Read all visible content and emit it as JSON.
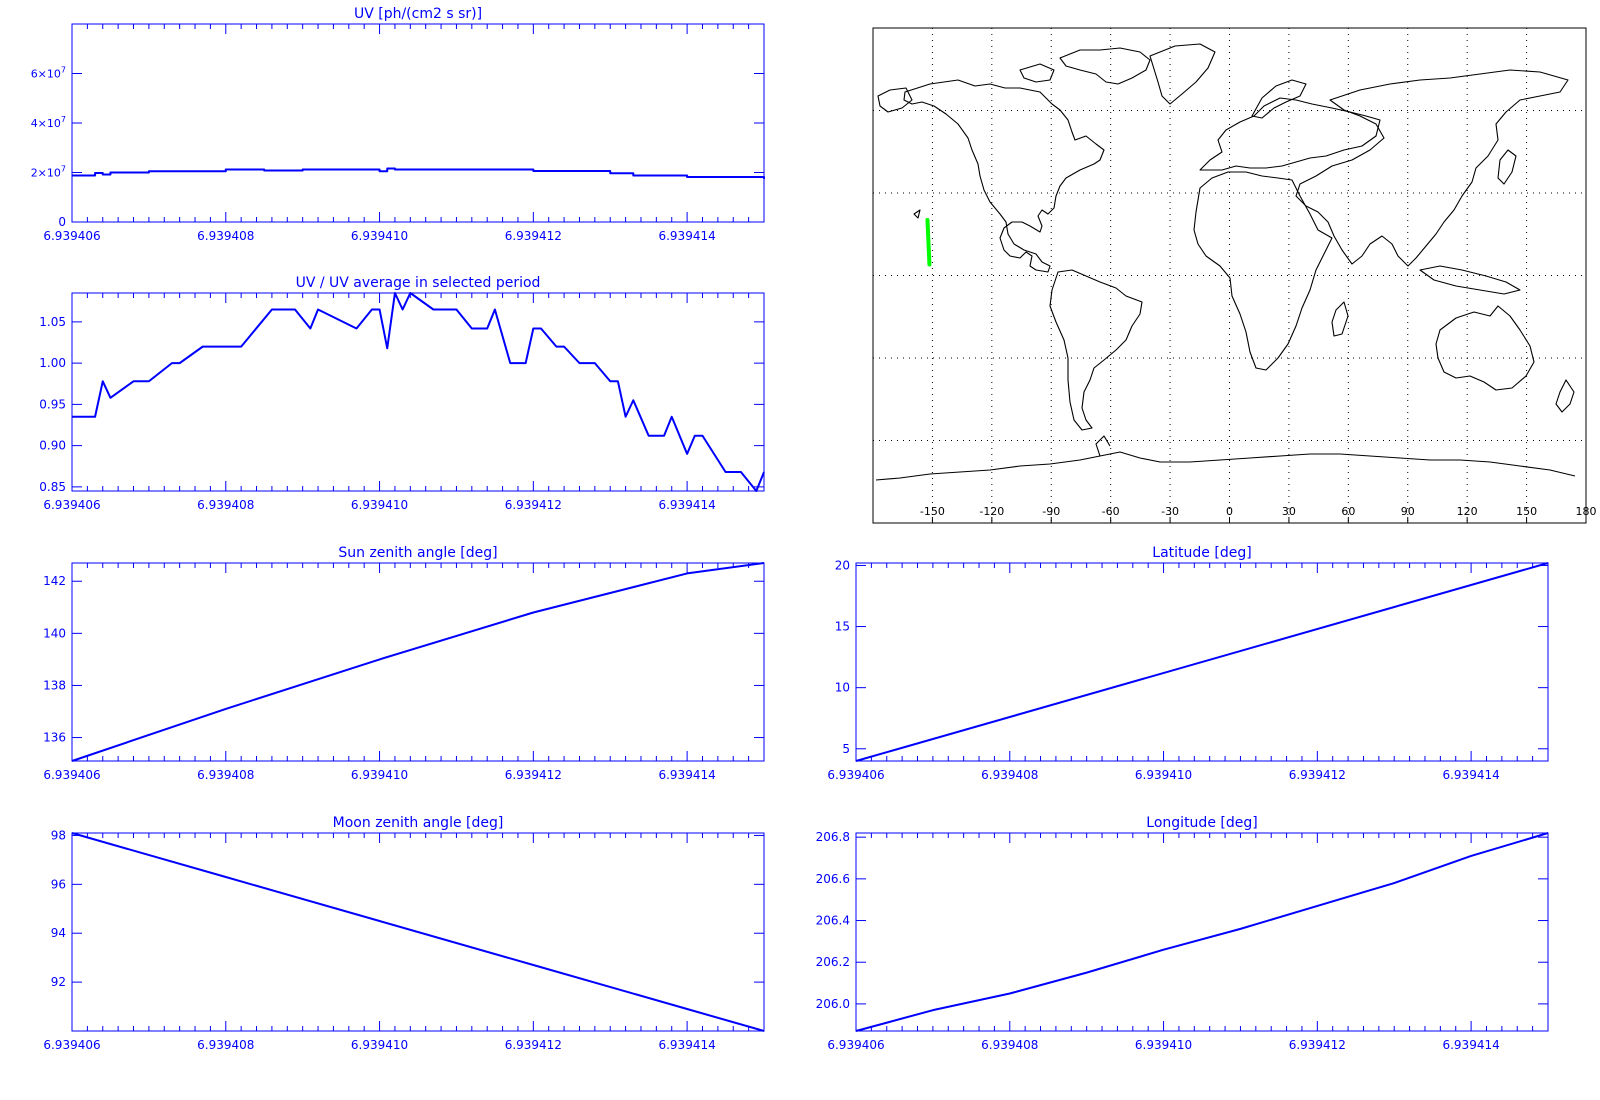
{
  "colors": {
    "axis": "#0000ff",
    "line": "#0000ff",
    "map": "#000000",
    "track": "#00ff00",
    "grid": "#000000"
  },
  "time_ticks": [
    "6.939406",
    "6.939408",
    "6.939410",
    "6.939412",
    "6.939414"
  ],
  "chart_data": [
    {
      "id": "uv",
      "type": "line",
      "title": "UV [ph/(cm2 s sr)]",
      "xlim": [
        6.939406,
        6.939415
      ],
      "ylim": [
        0,
        80000000.0
      ],
      "yticks": [
        {
          "v": 0,
          "label": "0"
        },
        {
          "v": 20000000.0,
          "label": "2x10^7"
        },
        {
          "v": 40000000.0,
          "label": "4x10^7"
        },
        {
          "v": 60000000.0,
          "label": "6x10^7"
        }
      ],
      "step": true,
      "x": [
        6.939406,
        6.9394063,
        6.9394064,
        6.9394065,
        6.939407,
        6.939408,
        6.9394085,
        6.939409,
        6.93941,
        6.9394101,
        6.9394102,
        6.939411,
        6.939412,
        6.939413,
        6.9394133,
        6.939414,
        6.939415
      ],
      "values": [
        18800000.0,
        19800000.0,
        19200000.0,
        20000000.0,
        20500000.0,
        21200000.0,
        20800000.0,
        21200000.0,
        20500000.0,
        21600000.0,
        21200000.0,
        21200000.0,
        20600000.0,
        19700000.0,
        18800000.0,
        18200000.0,
        17400000.0
      ]
    },
    {
      "id": "ratio",
      "type": "line",
      "title": "UV / UV average in selected period",
      "xlim": [
        6.939406,
        6.939415
      ],
      "ylim": [
        0.845,
        1.085
      ],
      "yticks": [
        {
          "v": 0.85,
          "label": "0.85"
        },
        {
          "v": 0.9,
          "label": "0.90"
        },
        {
          "v": 0.95,
          "label": "0.95"
        },
        {
          "v": 1.0,
          "label": "1.00"
        },
        {
          "v": 1.05,
          "label": "1.05"
        }
      ],
      "x": [
        6.939406,
        6.9394063,
        6.9394064,
        6.9394065,
        6.9394068,
        6.939407,
        6.9394073,
        6.9394074,
        6.9394077,
        6.9394078,
        6.9394082,
        6.9394086,
        6.9394088,
        6.9394089,
        6.9394091,
        6.9394092,
        6.9394097,
        6.9394099,
        6.93941,
        6.9394101,
        6.9394102,
        6.9394103,
        6.9394104,
        6.9394107,
        6.939411,
        6.9394112,
        6.9394114,
        6.9394115,
        6.9394117,
        6.9394119,
        6.939412,
        6.9394121,
        6.9394123,
        6.9394124,
        6.9394126,
        6.9394128,
        6.939413,
        6.9394131,
        6.9394132,
        6.9394133,
        6.9394135,
        6.9394137,
        6.9394138,
        6.939414,
        6.9394141,
        6.9394142,
        6.9394145,
        6.9394147,
        6.9394149,
        6.939415
      ],
      "values": [
        0.935,
        0.935,
        0.978,
        0.958,
        0.978,
        0.978,
        1.0,
        1.0,
        1.02,
        1.02,
        1.02,
        1.065,
        1.065,
        1.065,
        1.042,
        1.065,
        1.042,
        1.065,
        1.065,
        1.018,
        1.085,
        1.065,
        1.085,
        1.065,
        1.065,
        1.042,
        1.042,
        1.065,
        1.0,
        1.0,
        1.042,
        1.042,
        1.02,
        1.02,
        1.0,
        1.0,
        0.978,
        0.978,
        0.935,
        0.955,
        0.912,
        0.912,
        0.935,
        0.89,
        0.912,
        0.912,
        0.868,
        0.868,
        0.845,
        0.868
      ]
    },
    {
      "id": "sun",
      "type": "line",
      "title": "Sun zenith angle [deg]",
      "xlim": [
        6.939406,
        6.939415
      ],
      "ylim": [
        135.1,
        142.7
      ],
      "yticks": [
        {
          "v": 136,
          "label": "136"
        },
        {
          "v": 138,
          "label": "138"
        },
        {
          "v": 140,
          "label": "140"
        },
        {
          "v": 142,
          "label": "142"
        }
      ],
      "x": [
        6.939406,
        6.939408,
        6.93941,
        6.939412,
        6.939414,
        6.939415
      ],
      "values": [
        135.1,
        137.1,
        139.0,
        140.8,
        142.3,
        142.7
      ]
    },
    {
      "id": "moon",
      "type": "line",
      "title": "Moon zenith angle [deg]",
      "xlim": [
        6.939406,
        6.939415
      ],
      "ylim": [
        90.0,
        98.1
      ],
      "yticks": [
        {
          "v": 92,
          "label": "92"
        },
        {
          "v": 94,
          "label": "94"
        },
        {
          "v": 96,
          "label": "96"
        },
        {
          "v": 98,
          "label": "98"
        }
      ],
      "x": [
        6.939406,
        6.939408,
        6.93941,
        6.939412,
        6.939414,
        6.939415
      ],
      "values": [
        98.1,
        96.3,
        94.5,
        92.7,
        90.9,
        90.0
      ]
    },
    {
      "id": "lat",
      "type": "line",
      "title": "Latitude [deg]",
      "xlim": [
        6.939406,
        6.939415
      ],
      "ylim": [
        4.0,
        20.2
      ],
      "yticks": [
        {
          "v": 5,
          "label": "5"
        },
        {
          "v": 10,
          "label": "10"
        },
        {
          "v": 15,
          "label": "15"
        },
        {
          "v": 20,
          "label": "20"
        }
      ],
      "x": [
        6.939406,
        6.939415
      ],
      "values": [
        4.0,
        20.2
      ]
    },
    {
      "id": "lon",
      "type": "line",
      "title": "Longitude [deg]",
      "xlim": [
        6.939406,
        6.939415
      ],
      "ylim": [
        205.87,
        206.82
      ],
      "yticks": [
        {
          "v": 206.0,
          "label": "206.0"
        },
        {
          "v": 206.2,
          "label": "206.2"
        },
        {
          "v": 206.4,
          "label": "206.4"
        },
        {
          "v": 206.6,
          "label": "206.6"
        },
        {
          "v": 206.8,
          "label": "206.8"
        }
      ],
      "x": [
        6.939406,
        6.939407,
        6.939408,
        6.939409,
        6.93941,
        6.939411,
        6.939412,
        6.939413,
        6.939414,
        6.939415
      ],
      "values": [
        205.87,
        205.97,
        206.05,
        206.15,
        206.26,
        206.36,
        206.47,
        206.58,
        206.71,
        206.82
      ]
    }
  ],
  "map": {
    "type": "map",
    "xlim": [
      -180,
      180
    ],
    "ylim": [
      -90,
      90
    ],
    "xticks": [
      "-150",
      "-120",
      "-90",
      "-60",
      "-30",
      "0",
      "30",
      "60",
      "90",
      "120",
      "150",
      "180"
    ],
    "track": {
      "lon": [
        -151.5,
        -152.5
      ],
      "lat": [
        4.0,
        20.2
      ]
    }
  }
}
